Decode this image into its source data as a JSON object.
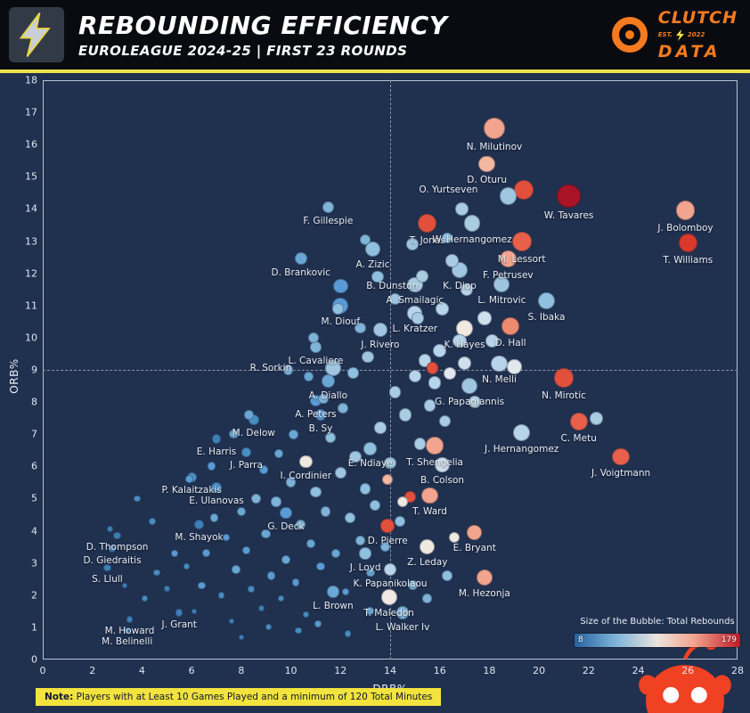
{
  "header": {
    "title": "REBOUNDING EFFICIENCY",
    "subtitle": "EUROLEAGUE 2024-25 | FIRST 23 ROUNDS",
    "brand": {
      "name_top": "CLUTCH",
      "name_bottom": "DATA",
      "est": "EST.",
      "year": "2022"
    }
  },
  "legend": {
    "title": "Size of the Bubble: Total Rebounds",
    "min": "8",
    "max": "179"
  },
  "note": {
    "prefix": "Note:",
    "text": " Players with at Least 10 Games Played and a minimum of 120 Total Minutes"
  },
  "chart_data": {
    "type": "scatter",
    "xlabel": "DRB%",
    "ylabel": "ORB%",
    "xlim": [
      0,
      28
    ],
    "ylim": [
      0,
      18
    ],
    "x_ticks": [
      0,
      2,
      4,
      6,
      8,
      10,
      12,
      14,
      16,
      18,
      20,
      22,
      24,
      26,
      28
    ],
    "y_ticks": [
      0,
      1,
      2,
      3,
      4,
      5,
      6,
      7,
      8,
      9,
      10,
      11,
      12,
      13,
      14,
      15,
      16,
      17,
      18
    ],
    "median_x": 14,
    "median_y": 9,
    "size_encoding": "Total Rebounds",
    "size_range": [
      8,
      179
    ],
    "palette": [
      "#1c5a8e",
      "#2e6da4",
      "#3f7fb5",
      "#4a8ec2",
      "#5b9bd5",
      "#6aa7d4",
      "#7fb3d8",
      "#8fc0e0",
      "#9fc5e0",
      "#a9cce3",
      "#b7d4ea",
      "#cfdfed",
      "#e2e8ee",
      "#efe9e2",
      "#f6d9c9",
      "#f4b79f",
      "#f2a48e",
      "#ef8a70",
      "#e8604a",
      "#e0503c",
      "#d93a2b",
      "#a81325"
    ],
    "points": [
      [
        18.2,
        16.5,
        150,
        16,
        "N. Milutinov"
      ],
      [
        17.9,
        15.4,
        85,
        15,
        "D. Oturu"
      ],
      [
        19.4,
        14.6,
        120,
        19,
        "O. Yurtseven",
        -85
      ],
      [
        21.2,
        14.4,
        179,
        21,
        "W. Tavares"
      ],
      [
        11.5,
        14.05,
        45,
        6,
        "F. Gillespie"
      ],
      [
        15.5,
        13.55,
        110,
        19,
        "T. Jones"
      ],
      [
        17.3,
        13.55,
        85,
        9,
        "W. Hernangomez"
      ],
      [
        25.9,
        13.95,
        120,
        16,
        "J. Bolomboy"
      ],
      [
        19.3,
        13.0,
        120,
        18,
        "M. Lessort"
      ],
      [
        26.0,
        12.95,
        110,
        20,
        "T. Williams"
      ],
      [
        10.4,
        12.45,
        50,
        5,
        "D. Brankovic"
      ],
      [
        13.3,
        12.75,
        75,
        7,
        "A. Zizic"
      ],
      [
        16.8,
        12.1,
        80,
        8,
        "K. Diop"
      ],
      [
        18.75,
        12.45,
        90,
        16,
        "F. Petrusev"
      ],
      [
        12.0,
        11.6,
        70,
        4,
        "B. Dunston",
        58
      ],
      [
        15.0,
        11.65,
        75,
        9,
        "A. Smailagic"
      ],
      [
        18.5,
        11.65,
        80,
        8,
        "L. Mitrovic"
      ],
      [
        12.0,
        11.0,
        80,
        4,
        "M. Diouf"
      ],
      [
        15.0,
        10.75,
        70,
        10,
        "L. Kratzer"
      ],
      [
        20.3,
        11.15,
        95,
        7,
        "S. Ibaka"
      ],
      [
        13.6,
        10.25,
        65,
        8,
        "J. Rivero"
      ],
      [
        17.0,
        10.3,
        90,
        13,
        "K. Hayes"
      ],
      [
        18.85,
        10.35,
        100,
        17,
        "D. Hall"
      ],
      [
        11.0,
        9.7,
        40,
        6,
        "L. Cavaliere"
      ],
      [
        11.7,
        9.05,
        85,
        8,
        "R. Sorkin",
        -70
      ],
      [
        18.4,
        9.2,
        85,
        10,
        "N. Melli"
      ],
      [
        21.0,
        8.75,
        115,
        19,
        "N. Mirotic"
      ],
      [
        11.5,
        8.65,
        55,
        5,
        "A. Diallo"
      ],
      [
        17.2,
        8.5,
        85,
        8,
        "G. Papagiannis"
      ],
      [
        11.0,
        8.05,
        45,
        4,
        "A. Peters"
      ],
      [
        8.5,
        7.45,
        35,
        3,
        "M. Delow"
      ],
      [
        11.2,
        7.6,
        40,
        4,
        "B. Sy"
      ],
      [
        21.6,
        7.4,
        100,
        18,
        "C. Metu"
      ],
      [
        7.0,
        6.85,
        30,
        2,
        "E. Harris"
      ],
      [
        19.3,
        7.05,
        90,
        10,
        "J. Hernangomez"
      ],
      [
        8.2,
        6.45,
        30,
        3,
        "J. Parra"
      ],
      [
        13.2,
        6.55,
        55,
        7,
        "E. Ndiaye"
      ],
      [
        15.8,
        6.65,
        95,
        16,
        "T. Shengelia"
      ],
      [
        10.6,
        6.15,
        55,
        13,
        "I. Cordinier"
      ],
      [
        16.1,
        6.05,
        70,
        11,
        "B. Colson"
      ],
      [
        6.0,
        5.65,
        30,
        3,
        "P. Kalaitzakis"
      ],
      [
        23.3,
        6.3,
        95,
        18,
        "J. Voigtmann"
      ],
      [
        7.0,
        5.35,
        35,
        3,
        "E. Ulanovas"
      ],
      [
        15.6,
        5.1,
        85,
        16,
        "T. Ward"
      ],
      [
        9.8,
        4.55,
        45,
        4,
        "G. Deck"
      ],
      [
        13.9,
        4.15,
        60,
        19,
        "D. Pierre"
      ],
      [
        6.3,
        4.2,
        30,
        2,
        "M. Shayok"
      ],
      [
        17.4,
        3.95,
        70,
        16,
        "E. Bryant"
      ],
      [
        3.0,
        3.85,
        20,
        2,
        "D. Thompson"
      ],
      [
        2.8,
        3.45,
        18,
        2,
        "D. Giedraitis"
      ],
      [
        15.5,
        3.5,
        75,
        13,
        "Z. Leday"
      ],
      [
        13.0,
        3.3,
        45,
        7,
        "J. Loyd"
      ],
      [
        2.6,
        2.85,
        18,
        2,
        "S. Llull"
      ],
      [
        14.0,
        2.8,
        50,
        10,
        "K. Papanikolaou"
      ],
      [
        17.8,
        2.55,
        85,
        16,
        "M. Hezonja"
      ],
      [
        11.7,
        2.1,
        45,
        5,
        "L. Brown"
      ],
      [
        13.95,
        1.95,
        80,
        13,
        "T. Maledon"
      ],
      [
        3.5,
        1.25,
        15,
        2,
        "M. Howard"
      ],
      [
        5.5,
        1.45,
        18,
        2,
        "J. Grant"
      ],
      [
        3.4,
        0.9,
        15,
        2,
        "M. Belinelli"
      ],
      [
        14.5,
        1.45,
        55,
        6,
        "L. Walker Iv"
      ],
      [
        18.75,
        14.4,
        95,
        8
      ],
      [
        2.7,
        4.05,
        12,
        2
      ],
      [
        3.3,
        2.3,
        10,
        2
      ],
      [
        4.1,
        1.9,
        12,
        3
      ],
      [
        4.6,
        2.7,
        14,
        3
      ],
      [
        5.0,
        2.2,
        12,
        2
      ],
      [
        5.3,
        3.3,
        16,
        4
      ],
      [
        5.8,
        2.9,
        14,
        3
      ],
      [
        6.1,
        1.5,
        10,
        2
      ],
      [
        6.4,
        2.3,
        18,
        4
      ],
      [
        6.6,
        3.3,
        20,
        4
      ],
      [
        6.9,
        4.4,
        22,
        5
      ],
      [
        7.2,
        2.0,
        14,
        3
      ],
      [
        7.4,
        3.8,
        18,
        4
      ],
      [
        7.6,
        1.2,
        10,
        2
      ],
      [
        7.8,
        2.8,
        24,
        5
      ],
      [
        8.0,
        4.6,
        26,
        5
      ],
      [
        8.2,
        3.4,
        20,
        4
      ],
      [
        8.4,
        2.2,
        16,
        3
      ],
      [
        8.6,
        5.0,
        30,
        6
      ],
      [
        8.8,
        1.6,
        12,
        2
      ],
      [
        9.0,
        3.9,
        28,
        5
      ],
      [
        9.2,
        2.6,
        22,
        4
      ],
      [
        9.4,
        4.9,
        32,
        6
      ],
      [
        9.6,
        1.9,
        14,
        3
      ],
      [
        9.8,
        3.1,
        26,
        5
      ],
      [
        10.0,
        5.5,
        35,
        6
      ],
      [
        10.2,
        2.4,
        18,
        4
      ],
      [
        10.4,
        4.2,
        30,
        6
      ],
      [
        10.6,
        1.4,
        12,
        3
      ],
      [
        10.8,
        3.6,
        28,
        5
      ],
      [
        11.0,
        5.2,
        38,
        7
      ],
      [
        11.2,
        2.9,
        22,
        4
      ],
      [
        11.4,
        4.6,
        34,
        6
      ],
      [
        11.6,
        6.9,
        40,
        7
      ],
      [
        11.8,
        3.3,
        26,
        5
      ],
      [
        12.0,
        5.8,
        42,
        8
      ],
      [
        12.2,
        2.1,
        18,
        4
      ],
      [
        12.4,
        4.4,
        36,
        7
      ],
      [
        12.6,
        6.3,
        44,
        8
      ],
      [
        12.8,
        3.7,
        30,
        6
      ],
      [
        13.0,
        5.3,
        40,
        7
      ],
      [
        13.2,
        2.7,
        24,
        5
      ],
      [
        13.4,
        4.8,
        38,
        7
      ],
      [
        13.6,
        7.2,
        46,
        9
      ],
      [
        13.8,
        3.5,
        32,
        6
      ],
      [
        14.0,
        6.1,
        44,
        8
      ],
      [
        14.2,
        8.3,
        48,
        9
      ],
      [
        14.4,
        4.3,
        36,
        7
      ],
      [
        14.6,
        7.6,
        50,
        9
      ],
      [
        14.8,
        5.05,
        40,
        19
      ],
      [
        15.0,
        8.8,
        52,
        10
      ],
      [
        15.2,
        6.7,
        46,
        9
      ],
      [
        15.4,
        9.3,
        55,
        10
      ],
      [
        15.6,
        7.9,
        48,
        9
      ],
      [
        15.8,
        8.6,
        52,
        10
      ],
      [
        16.0,
        9.6,
        58,
        10
      ],
      [
        16.2,
        7.4,
        44,
        9
      ],
      [
        16.4,
        8.9,
        50,
        12
      ],
      [
        16.6,
        3.8,
        36,
        13
      ],
      [
        16.8,
        9.9,
        60,
        10
      ],
      [
        17.0,
        9.2,
        55,
        11
      ],
      [
        17.4,
        8.0,
        48,
        10
      ],
      [
        10.1,
        7.0,
        30,
        5
      ],
      [
        9.5,
        6.4,
        26,
        5
      ],
      [
        8.9,
        5.9,
        22,
        4
      ],
      [
        12.1,
        7.8,
        36,
        6
      ],
      [
        12.5,
        8.9,
        40,
        7
      ],
      [
        13.1,
        9.4,
        44,
        8
      ],
      [
        11.3,
        8.1,
        34,
        6
      ],
      [
        10.7,
        8.8,
        30,
        5
      ],
      [
        13.9,
        5.6,
        38,
        15
      ],
      [
        14.5,
        4.9,
        40,
        13
      ],
      [
        15.1,
        10.6,
        50,
        9
      ],
      [
        16.1,
        10.9,
        55,
        10
      ],
      [
        17.8,
        10.6,
        60,
        11
      ],
      [
        18.1,
        9.9,
        58,
        10
      ],
      [
        15.3,
        11.9,
        52,
        9
      ],
      [
        14.2,
        11.2,
        46,
        8
      ],
      [
        13.5,
        11.9,
        44,
        7
      ],
      [
        12.8,
        10.3,
        40,
        6
      ],
      [
        16.5,
        12.4,
        55,
        9
      ],
      [
        17.1,
        11.5,
        50,
        10
      ],
      [
        14.9,
        12.9,
        48,
        8
      ],
      [
        16.9,
        14.0,
        55,
        9
      ],
      [
        19.0,
        9.1,
        70,
        12
      ],
      [
        15.7,
        9.05,
        45,
        19
      ],
      [
        10.3,
        0.9,
        14,
        3
      ],
      [
        11.1,
        1.1,
        16,
        4
      ],
      [
        12.3,
        0.8,
        14,
        3
      ],
      [
        13.2,
        1.5,
        20,
        5
      ],
      [
        9.1,
        1.0,
        12,
        3
      ],
      [
        8.0,
        0.7,
        10,
        2
      ],
      [
        14.9,
        2.3,
        30,
        6
      ],
      [
        15.5,
        1.9,
        28,
        6
      ],
      [
        16.3,
        2.6,
        34,
        7
      ],
      [
        5.9,
        5.6,
        22,
        4
      ],
      [
        6.8,
        6.0,
        24,
        4
      ],
      [
        4.4,
        4.3,
        16,
        3
      ],
      [
        3.8,
        5.0,
        14,
        3
      ],
      [
        7.7,
        7.0,
        26,
        5
      ],
      [
        8.3,
        7.6,
        28,
        5
      ],
      [
        9.9,
        9.0,
        32,
        6
      ],
      [
        10.9,
        10.0,
        36,
        6
      ],
      [
        11.9,
        10.9,
        40,
        7
      ],
      [
        13.0,
        13.05,
        35,
        6
      ],
      [
        16.3,
        13.1,
        40,
        7
      ],
      [
        22.3,
        7.5,
        55,
        9
      ]
    ]
  }
}
